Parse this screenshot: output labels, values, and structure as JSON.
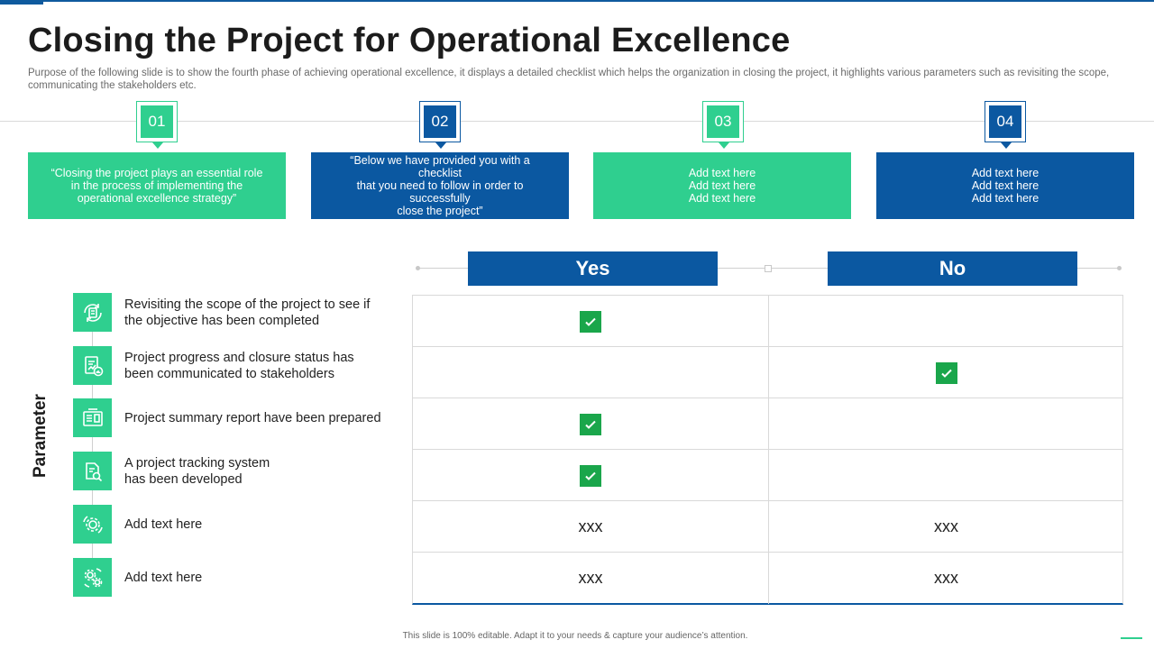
{
  "header": {
    "title": "Closing the Project for Operational Excellence",
    "subtitle": "Purpose of the following slide is to show the fourth phase of achieving operational excellence, it displays a detailed checklist which helps the organization in closing the project, it highlights various parameters such as revisiting the scope, communicating the stakeholders etc."
  },
  "colors": {
    "green": "#2fcf8f",
    "blue": "#0b58a1",
    "check": "#1aa64b"
  },
  "steps": [
    {
      "number": "01",
      "lines": [
        "“Closing the project plays an essential role",
        "in the process of implementing the",
        "operational excellence strategy”"
      ]
    },
    {
      "number": "02",
      "lines": [
        "“Below we have provided you with a checklist",
        "that you need to follow in order to successfully",
        "close the project”"
      ]
    },
    {
      "number": "03",
      "lines": [
        "Add text here",
        "Add text here",
        "Add text here"
      ]
    },
    {
      "number": "04",
      "lines": [
        "Add text here",
        "Add text here",
        "Add text here"
      ]
    }
  ],
  "table": {
    "yes_label": "Yes",
    "no_label": "No",
    "axis_label": "Parameter",
    "rows": [
      {
        "lines": [
          "Revisiting the scope of the project to see if",
          "the objective has been completed"
        ],
        "icon": "scope-refresh-icon",
        "yes": "check",
        "no": ""
      },
      {
        "lines": [
          "Project progress and closure status has",
          "been communicated to stakeholders"
        ],
        "icon": "report-chart-icon",
        "yes": "",
        "no": "check"
      },
      {
        "lines": [
          "Project summary report have been prepared"
        ],
        "icon": "summary-report-icon",
        "yes": "check",
        "no": ""
      },
      {
        "lines": [
          "A project tracking system",
          "has been developed"
        ],
        "icon": "tracking-search-icon",
        "yes": "check",
        "no": ""
      },
      {
        "lines": [
          "Add text here"
        ],
        "icon": "gear-cycle-icon",
        "yes": "xxx",
        "no": "xxx"
      },
      {
        "lines": [
          "Add text here"
        ],
        "icon": "gears-icon",
        "yes": "xxx",
        "no": "xxx"
      }
    ]
  },
  "footer": {
    "text": "This slide is 100% editable. Adapt it to your needs & capture your audience’s attention."
  }
}
